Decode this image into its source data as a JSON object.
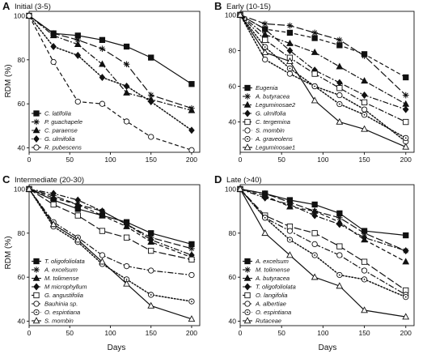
{
  "figure": {
    "xlabel": "Days",
    "ylabel": "RDM (%)"
  },
  "chart_data": [
    {
      "type": "line",
      "panel_letter": "A",
      "title": "Initial (3-5)",
      "xlabel": "Days",
      "ylabel": "RDM (%)",
      "xlim": [
        0,
        210
      ],
      "ylim": [
        38,
        102
      ],
      "xticks": [
        0,
        50,
        100,
        150,
        200
      ],
      "yticks": [
        40,
        60,
        80,
        100
      ],
      "legend_position": "bottom-left",
      "series": [
        {
          "name": "C. latifolia",
          "marker": "square",
          "dash": "solid",
          "x": [
            0,
            30,
            60,
            90,
            120,
            150,
            200
          ],
          "y": [
            100,
            92,
            91,
            89,
            86,
            81,
            69
          ]
        },
        {
          "name": "P. guachapele",
          "marker": "star",
          "dash": "longdash",
          "x": [
            0,
            30,
            60,
            90,
            120,
            150,
            200
          ],
          "y": [
            100,
            92,
            89,
            85,
            78,
            64,
            58
          ]
        },
        {
          "name": "C. paraense",
          "marker": "triangle",
          "dash": "dashdot",
          "x": [
            0,
            30,
            60,
            90,
            120,
            150,
            200
          ],
          "y": [
            100,
            91,
            87,
            78,
            65,
            62,
            57
          ]
        },
        {
          "name": "G. ulmifolia",
          "marker": "diamond",
          "dash": "dot",
          "x": [
            0,
            30,
            60,
            90,
            120,
            150,
            200
          ],
          "y": [
            100,
            86,
            82,
            72,
            68,
            61,
            48
          ]
        },
        {
          "name": "R. pubescens",
          "marker": "circle-open",
          "dash": "dash",
          "x": [
            0,
            30,
            60,
            90,
            120,
            150,
            200
          ],
          "y": [
            100,
            79,
            61,
            60,
            52,
            45,
            39
          ]
        }
      ]
    },
    {
      "type": "line",
      "panel_letter": "B",
      "title": "Early (10-15)",
      "xlabel": "Days",
      "ylabel": "RDM (%)",
      "xlim": [
        0,
        210
      ],
      "ylim": [
        23,
        102
      ],
      "xticks": [
        0,
        50,
        100,
        150,
        200
      ],
      "yticks": [
        40,
        60,
        80,
        100
      ],
      "legend_position": "bottom-left",
      "series": [
        {
          "name": "Eugenia",
          "marker": "square",
          "dash": "dash",
          "x": [
            0,
            30,
            60,
            90,
            120,
            150,
            200
          ],
          "y": [
            100,
            92,
            90,
            87,
            83,
            78,
            65
          ]
        },
        {
          "name": "A. butyracea",
          "marker": "star",
          "dash": "longdash",
          "x": [
            0,
            30,
            60,
            90,
            120,
            150,
            200
          ],
          "y": [
            100,
            95,
            94,
            90,
            86,
            77,
            55
          ]
        },
        {
          "name": "Leguminosae2",
          "marker": "triangle",
          "dash": "dashdot",
          "x": [
            0,
            30,
            60,
            90,
            120,
            150,
            200
          ],
          "y": [
            100,
            89,
            84,
            79,
            71,
            63,
            50
          ]
        },
        {
          "name": "G. ulmifolia",
          "marker": "diamond",
          "dash": "dashdot",
          "x": [
            0,
            30,
            60,
            90,
            120,
            150,
            200
          ],
          "y": [
            100,
            92,
            80,
            69,
            62,
            55,
            47
          ]
        },
        {
          "name": "C. tergemina",
          "marker": "square-open",
          "dash": "dashdot",
          "x": [
            0,
            30,
            60,
            90,
            120,
            150,
            200
          ],
          "y": [
            100,
            86,
            76,
            67,
            59,
            51,
            40
          ]
        },
        {
          "name": "S. mombin",
          "marker": "circle-open",
          "dash": "dot",
          "x": [
            0,
            30,
            60,
            90,
            120,
            150,
            200
          ],
          "y": [
            100,
            75,
            67,
            60,
            55,
            47,
            29
          ]
        },
        {
          "name": "A. graveolens",
          "marker": "dot-open",
          "dash": "dot",
          "x": [
            0,
            30,
            60,
            90,
            120,
            150,
            200
          ],
          "y": [
            100,
            82,
            70,
            60,
            50,
            44,
            31
          ]
        },
        {
          "name": "Leguminosae1",
          "marker": "triangle-open",
          "dash": "solid",
          "x": [
            0,
            30,
            60,
            90,
            120,
            150,
            200
          ],
          "y": [
            100,
            79,
            74,
            52,
            40,
            36,
            26
          ]
        }
      ]
    },
    {
      "type": "line",
      "panel_letter": "C",
      "title": "Intermediate (20-30)",
      "xlabel": "Days",
      "ylabel": "RDM (%)",
      "xlim": [
        0,
        210
      ],
      "ylim": [
        38,
        102
      ],
      "xticks": [
        0,
        50,
        100,
        150,
        200
      ],
      "yticks": [
        40,
        60,
        80,
        100
      ],
      "legend_position": "bottom-left",
      "series": [
        {
          "name": "T. oligofoliolata",
          "marker": "square",
          "dash": "solid",
          "x": [
            0,
            30,
            60,
            90,
            120,
            150,
            200
          ],
          "y": [
            100,
            95,
            91,
            88,
            85,
            80,
            75
          ]
        },
        {
          "name": "A. excelsum",
          "marker": "star",
          "dash": "longdash",
          "x": [
            0,
            30,
            60,
            90,
            120,
            150,
            200
          ],
          "y": [
            100,
            97,
            93,
            90,
            84,
            78,
            73
          ]
        },
        {
          "name": "M. tolimense",
          "marker": "triangle",
          "dash": "dash",
          "x": [
            0,
            30,
            60,
            90,
            120,
            150,
            200
          ],
          "y": [
            100,
            96,
            93,
            88,
            83,
            76,
            69
          ]
        },
        {
          "name": "M microphyllum",
          "marker": "diamond",
          "dash": "dashdot",
          "x": [
            0,
            30,
            60,
            90,
            120,
            150,
            200
          ],
          "y": [
            100,
            98,
            95,
            90,
            84,
            77,
            70
          ]
        },
        {
          "name": "G. angustifolia",
          "marker": "square-open",
          "dash": "longdash",
          "x": [
            0,
            30,
            60,
            90,
            120,
            150,
            200
          ],
          "y": [
            100,
            93,
            88,
            81,
            78,
            72,
            68
          ]
        },
        {
          "name": "Bauhinia sp.",
          "marker": "circle-open",
          "dash": "dashdot",
          "x": [
            0,
            30,
            60,
            90,
            120,
            150,
            200
          ],
          "y": [
            100,
            85,
            78,
            70,
            65,
            63,
            61
          ]
        },
        {
          "name": "O. espintiana",
          "marker": "dot-open",
          "dash": "dot",
          "x": [
            0,
            30,
            60,
            90,
            120,
            150,
            200
          ],
          "y": [
            100,
            83,
            76,
            66,
            59,
            52,
            49
          ]
        },
        {
          "name": "S. mombin",
          "marker": "triangle-open",
          "dash": "solid",
          "x": [
            0,
            30,
            60,
            90,
            120,
            150,
            200
          ],
          "y": [
            100,
            84,
            77,
            67,
            57,
            47,
            41
          ]
        }
      ]
    },
    {
      "type": "line",
      "panel_letter": "D",
      "title": "Late (>40)",
      "xlabel": "Days",
      "ylabel": "RDM (%)",
      "xlim": [
        0,
        210
      ],
      "ylim": [
        38,
        102
      ],
      "xticks": [
        0,
        50,
        100,
        150,
        200
      ],
      "yticks": [
        40,
        60,
        80,
        100
      ],
      "legend_position": "bottom-left",
      "series": [
        {
          "name": "A. excelsum",
          "marker": "square",
          "dash": "solid",
          "x": [
            0,
            30,
            60,
            90,
            120,
            150,
            200
          ],
          "y": [
            100,
            98,
            95,
            93,
            89,
            81,
            79
          ]
        },
        {
          "name": "M. tolimense",
          "marker": "star",
          "dash": "longdash",
          "x": [
            0,
            30,
            60,
            90,
            120,
            150,
            200
          ],
          "y": [
            100,
            98,
            94,
            90,
            87,
            80,
            72
          ]
        },
        {
          "name": "A. butyracea",
          "marker": "triangle",
          "dash": "dash",
          "x": [
            0,
            30,
            60,
            90,
            120,
            150,
            200
          ],
          "y": [
            100,
            97,
            92,
            90,
            85,
            77,
            67
          ]
        },
        {
          "name": "T. oligofoliolata",
          "marker": "diamond",
          "dash": "dashdot",
          "x": [
            0,
            30,
            60,
            90,
            120,
            150,
            200
          ],
          "y": [
            100,
            96,
            93,
            88,
            84,
            78,
            72
          ]
        },
        {
          "name": "O. langifolia",
          "marker": "square-open",
          "dash": "longdash",
          "x": [
            0,
            30,
            60,
            90,
            120,
            150,
            200
          ],
          "y": [
            100,
            88,
            83,
            80,
            74,
            67,
            54
          ]
        },
        {
          "name": "A. albertiae",
          "marker": "circle-open",
          "dash": "dashdot",
          "x": [
            0,
            30,
            60,
            90,
            120,
            150,
            200
          ],
          "y": [
            100,
            87,
            81,
            75,
            70,
            63,
            52
          ]
        },
        {
          "name": "O. espintiana",
          "marker": "dot-open",
          "dash": "dot",
          "x": [
            0,
            30,
            60,
            90,
            120,
            150,
            200
          ],
          "y": [
            100,
            87,
            77,
            70,
            61,
            59,
            51
          ]
        },
        {
          "name": "Rutaceae",
          "marker": "triangle-open",
          "dash": "solid",
          "x": [
            0,
            30,
            60,
            90,
            120,
            150,
            200
          ],
          "y": [
            100,
            80,
            70,
            60,
            56,
            45,
            42
          ]
        }
      ]
    }
  ]
}
